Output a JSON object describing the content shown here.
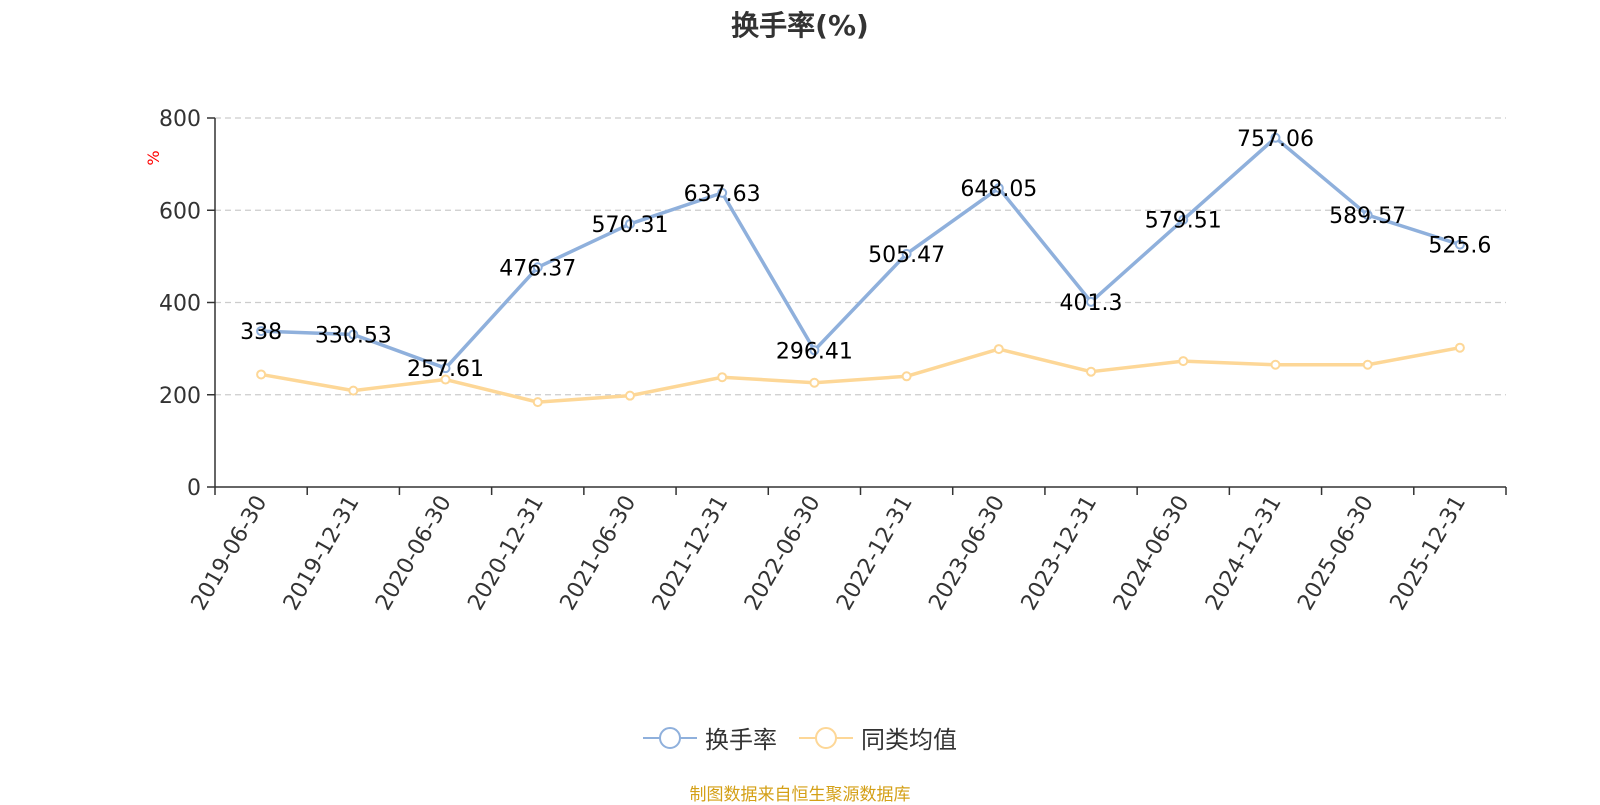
{
  "chart_data": {
    "type": "line",
    "title": "换手率(%)",
    "ylabel": "%",
    "ylim": [
      0,
      800
    ],
    "yticks": [
      0,
      200,
      400,
      600,
      800
    ],
    "grid": true,
    "legend_position": "bottom",
    "categories": [
      "2019-06-30",
      "2019-12-31",
      "2020-06-30",
      "2020-12-31",
      "2021-06-30",
      "2021-12-31",
      "2022-06-30",
      "2022-12-31",
      "2023-06-30",
      "2023-12-31",
      "2024-06-30",
      "2024-12-31",
      "2025-06-30",
      "2025-12-31"
    ],
    "series": [
      {
        "name": "换手率",
        "color": "#8fb0dc",
        "show_labels": true,
        "values": [
          338,
          330.53,
          257.61,
          476.37,
          570.31,
          637.63,
          296.41,
          505.47,
          648.05,
          401.3,
          579.51,
          757.06,
          589.57,
          525.6
        ]
      },
      {
        "name": "同类均值",
        "color": "#fdd797",
        "show_labels": false,
        "values": [
          244,
          209,
          233,
          184,
          198,
          238,
          226,
          240,
          299,
          250,
          273,
          265,
          265,
          302
        ]
      }
    ]
  },
  "source_note": "制图数据来自恒生聚源数据库",
  "colors": {
    "axis_label_y": "#ff0000",
    "source": "#d4a017"
  }
}
